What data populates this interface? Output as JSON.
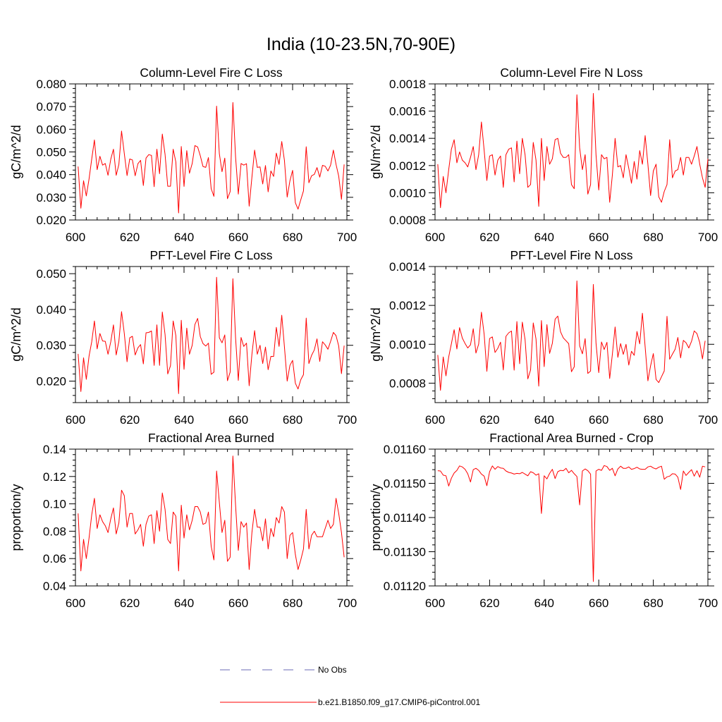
{
  "main_title": "India (10-23.5N,70-90E)",
  "legend": [
    {
      "label": "No Obs",
      "color": "#6b6bb5",
      "style": "dashed"
    },
    {
      "label": "b.e21.B1850.f09_g17.CMIP6-piControl.001",
      "color": "#ff0000",
      "style": "solid"
    }
  ],
  "chart_data": [
    {
      "type": "line",
      "title": "Column-Level Fire C Loss",
      "ylabel": "gC/m^2/d",
      "xlim": [
        600,
        700
      ],
      "ylim": [
        0.02,
        0.08
      ],
      "xticks": [
        600,
        620,
        640,
        660,
        680,
        700
      ],
      "xtick_labels": [
        "600",
        "620",
        "640",
        "660",
        "680",
        "700"
      ],
      "yticks": [
        0.02,
        0.03,
        0.04,
        0.05,
        0.06,
        0.07,
        0.08
      ],
      "ytick_labels": [
        "0.020",
        "0.030",
        "0.040",
        "0.050",
        "0.060",
        "0.070",
        "0.080"
      ],
      "series": [
        {
          "color": "#ff0000",
          "x_start": 601,
          "x_step": 1,
          "values": [
            0.0436,
            0.0252,
            0.0373,
            0.0306,
            0.0381,
            0.0469,
            0.0553,
            0.0422,
            0.0481,
            0.0442,
            0.0449,
            0.0397,
            0.0468,
            0.0512,
            0.0397,
            0.0445,
            0.0592,
            0.0493,
            0.0396,
            0.0469,
            0.0465,
            0.0395,
            0.0448,
            0.0463,
            0.0352,
            0.0473,
            0.0488,
            0.0485,
            0.0347,
            0.0512,
            0.0404,
            0.0579,
            0.0489,
            0.0349,
            0.0349,
            0.0512,
            0.0456,
            0.0231,
            0.0524,
            0.0348,
            0.0506,
            0.0406,
            0.0449,
            0.0528,
            0.0522,
            0.0483,
            0.0436,
            0.0432,
            0.0475,
            0.0338,
            0.0304,
            0.0702,
            0.0492,
            0.0413,
            0.0473,
            0.0294,
            0.0325,
            0.0718,
            0.0478,
            0.0314,
            0.0449,
            0.0442,
            0.0448,
            0.0261,
            0.0389,
            0.0508,
            0.0432,
            0.0434,
            0.0359,
            0.044,
            0.0324,
            0.0416,
            0.0392,
            0.0495,
            0.0445,
            0.0546,
            0.0463,
            0.0301,
            0.0373,
            0.0419,
            0.0276,
            0.0248,
            0.0289,
            0.0328,
            0.0523,
            0.0364,
            0.0395,
            0.0401,
            0.0431,
            0.0389,
            0.0441,
            0.0437,
            0.0416,
            0.0442,
            0.0508,
            0.0445,
            0.0393,
            0.0291,
            0.0445
          ]
        }
      ]
    },
    {
      "type": "line",
      "title": "Column-Level Fire N Loss",
      "ylabel": "gN/m^2/d",
      "xlim": [
        600,
        700
      ],
      "ylim": [
        0.0008,
        0.0018
      ],
      "xticks": [
        600,
        620,
        640,
        660,
        680,
        700
      ],
      "xtick_labels": [
        "600",
        "620",
        "640",
        "660",
        "680",
        "700"
      ],
      "yticks": [
        0.0008,
        0.001,
        0.0012,
        0.0014,
        0.0016,
        0.0018
      ],
      "ytick_labels": [
        "0.0008",
        "0.0010",
        "0.0012",
        "0.0014",
        "0.0016",
        "0.0018"
      ],
      "series": [
        {
          "color": "#ff0000",
          "x_start": 601,
          "x_step": 1,
          "values": [
            0.00121,
            0.00089,
            0.00112,
            0.001,
            0.00117,
            0.00132,
            0.00139,
            0.00122,
            0.0013,
            0.00124,
            0.00122,
            0.00119,
            0.00126,
            0.00134,
            0.00117,
            0.00128,
            0.00152,
            0.00131,
            0.00109,
            0.00127,
            0.00128,
            0.00113,
            0.00124,
            0.00127,
            0.00104,
            0.00128,
            0.00132,
            0.00133,
            0.00108,
            0.00138,
            0.00114,
            0.0014,
            0.00128,
            0.00104,
            0.00106,
            0.00137,
            0.00124,
            0.0009,
            0.0014,
            0.00109,
            0.00134,
            0.00121,
            0.00125,
            0.00139,
            0.0014,
            0.00129,
            0.00126,
            0.00126,
            0.00128,
            0.00106,
            0.00103,
            0.00172,
            0.00133,
            0.00117,
            0.00128,
            0.00099,
            0.00106,
            0.00173,
            0.00128,
            0.00102,
            0.00128,
            0.00125,
            0.00126,
            0.00093,
            0.00113,
            0.0014,
            0.00119,
            0.0012,
            0.00111,
            0.00128,
            0.00118,
            0.00107,
            0.00123,
            0.0011,
            0.00131,
            0.00121,
            0.00142,
            0.00121,
            0.00098,
            0.00116,
            0.00121,
            0.00097,
            0.00093,
            0.00101,
            0.00106,
            0.00139,
            0.00111,
            0.00116,
            0.00117,
            0.00126,
            0.00113,
            0.00126,
            0.00126,
            0.00121,
            0.00127,
            0.00134,
            0.00121,
            0.00111,
            0.00104,
            0.00125
          ]
        }
      ]
    },
    {
      "type": "line",
      "title": "PFT-Level Fire C Loss",
      "ylabel": "gC/m^2/d",
      "xlim": [
        600,
        700
      ],
      "ylim": [
        0.014,
        0.052
      ],
      "xticks": [
        600,
        620,
        640,
        660,
        680,
        700
      ],
      "xtick_labels": [
        "600",
        "620",
        "640",
        "660",
        "680",
        "700"
      ],
      "yticks": [
        0.02,
        0.03,
        0.04,
        0.05
      ],
      "ytick_labels": [
        "0.020",
        "0.030",
        "0.040",
        "0.050"
      ],
      "series": [
        {
          "color": "#ff0000",
          "x_start": 601,
          "x_step": 1,
          "values": [
            0.0276,
            0.0171,
            0.0265,
            0.0205,
            0.027,
            0.031,
            0.0368,
            0.029,
            0.0333,
            0.0312,
            0.0311,
            0.0275,
            0.031,
            0.0357,
            0.0273,
            0.0311,
            0.0394,
            0.0333,
            0.0254,
            0.0321,
            0.0325,
            0.0273,
            0.0293,
            0.0302,
            0.0248,
            0.0335,
            0.0336,
            0.034,
            0.0244,
            0.0357,
            0.0244,
            0.0393,
            0.033,
            0.022,
            0.0243,
            0.0368,
            0.0327,
            0.0165,
            0.037,
            0.0233,
            0.0348,
            0.0275,
            0.03,
            0.0358,
            0.0375,
            0.0324,
            0.0305,
            0.0298,
            0.0306,
            0.0219,
            0.0225,
            0.049,
            0.0321,
            0.0307,
            0.0329,
            0.0201,
            0.0225,
            0.0486,
            0.0321,
            0.0202,
            0.0322,
            0.0297,
            0.0306,
            0.0187,
            0.0275,
            0.0341,
            0.0275,
            0.03,
            0.0249,
            0.0295,
            0.0232,
            0.0269,
            0.0269,
            0.035,
            0.0297,
            0.0384,
            0.0296,
            0.02,
            0.0244,
            0.0258,
            0.0194,
            0.0178,
            0.0204,
            0.0218,
            0.0376,
            0.0249,
            0.0272,
            0.0287,
            0.0318,
            0.0255,
            0.031,
            0.0301,
            0.0289,
            0.0311,
            0.0336,
            0.0327,
            0.0298,
            0.0221,
            0.0299
          ]
        }
      ]
    },
    {
      "type": "line",
      "title": "PFT-Level Fire N Loss",
      "ylabel": "gN/m^2/d",
      "xlim": [
        600,
        700
      ],
      "ylim": [
        0.0007,
        0.0014
      ],
      "xticks": [
        600,
        620,
        640,
        660,
        680,
        700
      ],
      "xtick_labels": [
        "600",
        "620",
        "640",
        "660",
        "680",
        "700"
      ],
      "yticks": [
        0.0008,
        0.001,
        0.0012,
        0.0014
      ],
      "ytick_labels": [
        "0.0008",
        "0.0010",
        "0.0012",
        "0.0014"
      ],
      "series": [
        {
          "color": "#ff0000",
          "x_start": 601,
          "x_step": 1,
          "values": [
            0.000945,
            0.000763,
            0.000935,
            0.000838,
            0.000935,
            0.001003,
            0.001075,
            0.000976,
            0.001086,
            0.001032,
            0.001004,
            0.000981,
            0.000997,
            0.00108,
            0.000955,
            0.001001,
            0.001165,
            0.00105,
            0.000861,
            0.00103,
            0.001038,
            0.000958,
            0.000979,
            0.001011,
            0.000868,
            0.001041,
            0.001059,
            0.001068,
            0.000867,
            0.001117,
            0.0009,
            0.001114,
            0.001025,
            0.000822,
            0.000868,
            0.00111,
            0.001027,
            0.000785,
            0.001122,
            0.000885,
            0.001101,
            0.000953,
            0.001005,
            0.001129,
            0.001145,
            0.001064,
            0.001033,
            0.001018,
            0.001003,
            0.000859,
            0.000884,
            0.001326,
            0.000992,
            0.000951,
            0.001029,
            0.00085,
            0.000862,
            0.001308,
            0.001007,
            0.000854,
            0.001012,
            0.000973,
            0.00101,
            0.000824,
            0.000948,
            0.001089,
            0.000933,
            0.001004,
            0.000948,
            0.001,
            0.000893,
            0.000964,
            0.000943,
            0.001066,
            0.001002,
            0.00116,
            0.000987,
            0.000812,
            0.000889,
            0.000952,
            0.000819,
            0.000803,
            0.000833,
            0.000863,
            0.001144,
            0.000923,
            0.000949,
            0.000975,
            0.001035,
            0.00093,
            0.00102,
            0.001008,
            0.000981,
            0.001015,
            0.001069,
            0.001055,
            0.001009,
            0.000925,
            0.001018
          ]
        }
      ]
    },
    {
      "type": "line",
      "title": "Fractional Area Burned",
      "ylabel": "proportion/y",
      "xlim": [
        600,
        700
      ],
      "ylim": [
        0.04,
        0.14
      ],
      "xticks": [
        600,
        620,
        640,
        660,
        680,
        700
      ],
      "xtick_labels": [
        "600",
        "620",
        "640",
        "660",
        "680",
        "700"
      ],
      "yticks": [
        0.04,
        0.06,
        0.08,
        0.1,
        0.12,
        0.14
      ],
      "ytick_labels": [
        "0.04",
        "0.06",
        "0.08",
        "0.10",
        "0.12",
        "0.14"
      ],
      "series": [
        {
          "color": "#ff0000",
          "x_start": 601,
          "x_step": 1,
          "values": [
            0.093,
            0.051,
            0.074,
            0.06,
            0.075,
            0.092,
            0.104,
            0.082,
            0.092,
            0.087,
            0.084,
            0.079,
            0.089,
            0.097,
            0.078,
            0.086,
            0.11,
            0.106,
            0.083,
            0.093,
            0.093,
            0.078,
            0.081,
            0.085,
            0.069,
            0.085,
            0.091,
            0.092,
            0.071,
            0.095,
            0.08,
            0.108,
            0.096,
            0.074,
            0.071,
            0.094,
            0.091,
            0.051,
            0.099,
            0.075,
            0.092,
            0.081,
            0.088,
            0.098,
            0.098,
            0.094,
            0.085,
            0.086,
            0.094,
            0.069,
            0.059,
            0.124,
            0.101,
            0.079,
            0.088,
            0.058,
            0.061,
            0.135,
            0.099,
            0.066,
            0.087,
            0.083,
            0.086,
            0.052,
            0.079,
            0.096,
            0.083,
            0.083,
            0.073,
            0.089,
            0.067,
            0.082,
            0.076,
            0.09,
            0.086,
            0.098,
            0.094,
            0.06,
            0.077,
            0.079,
            0.063,
            0.052,
            0.059,
            0.067,
            0.096,
            0.067,
            0.077,
            0.08,
            0.076,
            0.076,
            0.076,
            0.082,
            0.088,
            0.082,
            0.085,
            0.104,
            0.093,
            0.079,
            0.061
          ]
        }
      ]
    },
    {
      "type": "line",
      "title": "Fractional Area Burned - Crop",
      "ylabel": "proportion/y",
      "xlim": [
        600,
        700
      ],
      "ylim": [
        0.0112,
        0.0116
      ],
      "xticks": [
        600,
        620,
        640,
        660,
        680,
        700
      ],
      "xtick_labels": [
        "600",
        "620",
        "640",
        "660",
        "680",
        "700"
      ],
      "yticks": [
        0.0112,
        0.0113,
        0.0114,
        0.0115,
        0.0116
      ],
      "ytick_labels": [
        "0.01120",
        "0.01130",
        "0.01140",
        "0.01150",
        "0.01160"
      ],
      "series": [
        {
          "color": "#ff0000",
          "x_start": 601,
          "x_step": 1,
          "values": [
            0.011537,
            0.011536,
            0.011524,
            0.011522,
            0.011492,
            0.011515,
            0.01153,
            0.011538,
            0.011551,
            0.011548,
            0.011541,
            0.011528,
            0.011504,
            0.01154,
            0.011544,
            0.011538,
            0.011527,
            0.011521,
            0.011493,
            0.011534,
            0.011551,
            0.011541,
            0.011549,
            0.011545,
            0.011544,
            0.011536,
            0.011532,
            0.01153,
            0.011527,
            0.011529,
            0.011528,
            0.011532,
            0.011527,
            0.011522,
            0.011534,
            0.011531,
            0.011524,
            0.011528,
            0.011412,
            0.011522,
            0.011513,
            0.011529,
            0.011541,
            0.011514,
            0.011534,
            0.011538,
            0.011537,
            0.011544,
            0.011531,
            0.011538,
            0.011528,
            0.01152,
            0.011437,
            0.011536,
            0.011542,
            0.011537,
            0.011527,
            0.011213,
            0.011536,
            0.011541,
            0.011538,
            0.011552,
            0.011549,
            0.011538,
            0.011544,
            0.011522,
            0.011542,
            0.01155,
            0.011544,
            0.011544,
            0.011548,
            0.011541,
            0.011543,
            0.011547,
            0.011542,
            0.011541,
            0.011541,
            0.011548,
            0.01155,
            0.011545,
            0.011542,
            0.011547,
            0.01155,
            0.011512,
            0.011519,
            0.011521,
            0.011528,
            0.011527,
            0.011518,
            0.011482,
            0.011536,
            0.011523,
            0.011532,
            0.01154,
            0.011521,
            0.011537,
            0.011518,
            0.01155,
            0.011548
          ]
        }
      ]
    }
  ]
}
